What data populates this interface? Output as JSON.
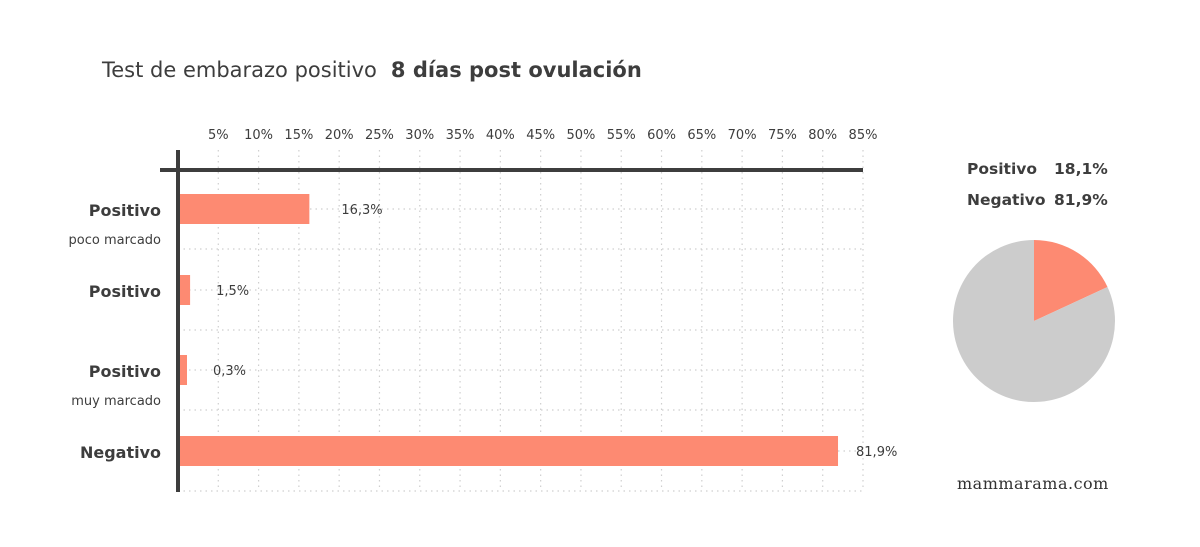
{
  "title": {
    "main": "Test de embarazo positivo",
    "highlight": "8 días post ovulación"
  },
  "colors": {
    "bar": "#fd8a72",
    "pie_positive": "#fd8a72",
    "pie_negative": "#cccccc",
    "axis": "#3d3d3d",
    "grid": "#cfcfcf"
  },
  "chart_data": [
    {
      "type": "bar",
      "orientation": "horizontal",
      "categories": [
        {
          "label": "Positivo",
          "sublabel": "poco marcado"
        },
        {
          "label": "Positivo",
          "sublabel": ""
        },
        {
          "label": "Positivo",
          "sublabel": "muy marcado"
        },
        {
          "label": "Negativo",
          "sublabel": ""
        }
      ],
      "values": [
        16.3,
        1.5,
        0.3,
        81.9
      ],
      "value_labels": [
        "16,3%",
        "1,5%",
        "0,3%",
        "81,9%"
      ],
      "xlim": [
        0,
        85
      ],
      "xticks": [
        "5%",
        "10%",
        "15%",
        "20%",
        "25%",
        "30%",
        "35%",
        "40%",
        "45%",
        "50%",
        "55%",
        "60%",
        "65%",
        "70%",
        "75%",
        "80%",
        "85%"
      ],
      "xaxis_position": "top",
      "grid": "dotted"
    },
    {
      "type": "pie",
      "slices": [
        {
          "label": "Positivo",
          "value": 18.1,
          "value_label": "18,1%"
        },
        {
          "label": "Negativo",
          "value": 81.9,
          "value_label": "81,9%"
        }
      ],
      "legend_placement": "top"
    }
  ],
  "footer": {
    "site": "mammarama.com"
  }
}
